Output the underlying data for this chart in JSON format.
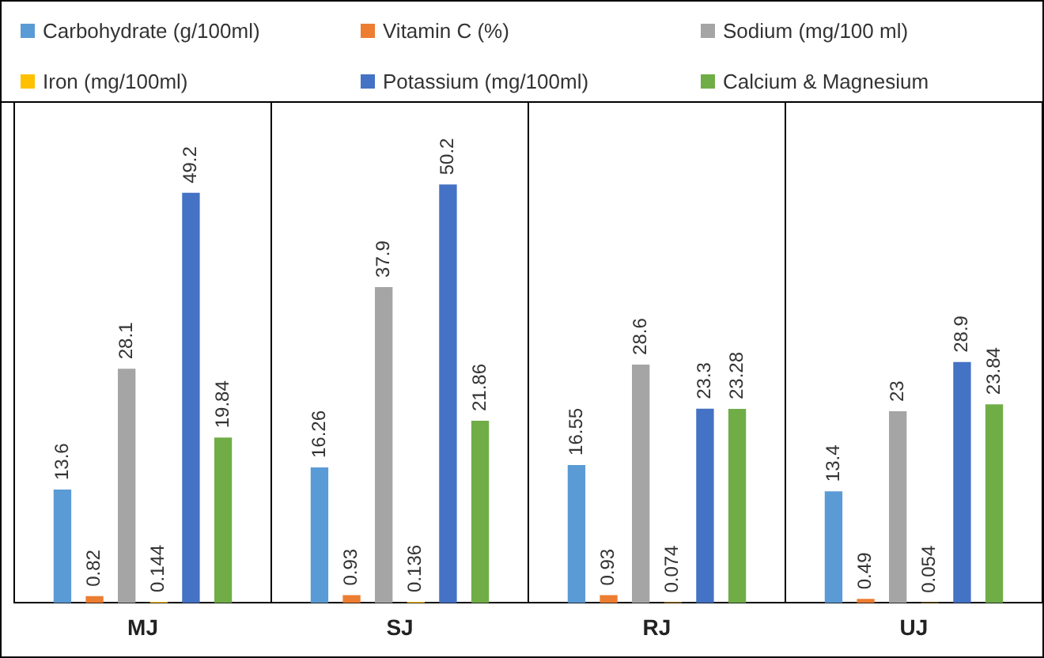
{
  "chart_data": {
    "type": "bar",
    "categories": [
      "MJ",
      "SJ",
      "RJ",
      "UJ"
    ],
    "series": [
      {
        "name": "Carbohydrate (g/100ml)",
        "color": "#5b9bd5",
        "values": [
          13.6,
          16.26,
          16.55,
          13.4
        ]
      },
      {
        "name": "Vitamin C (%)",
        "color": "#ed7d31",
        "values": [
          0.82,
          0.93,
          0.93,
          0.49
        ]
      },
      {
        "name": "Sodium (mg/100 ml)",
        "color": "#a5a5a5",
        "values": [
          28.1,
          37.9,
          28.6,
          23
        ]
      },
      {
        "name": "Iron (mg/100ml)",
        "color": "#ffc000",
        "values": [
          0.144,
          0.136,
          0.074,
          0.054
        ]
      },
      {
        "name": "Potassium (mg/100ml)",
        "color": "#4472c4",
        "values": [
          49.2,
          50.2,
          23.3,
          28.9
        ]
      },
      {
        "name": "Calcium & Magnesium",
        "color": "#70ad47",
        "values": [
          19.84,
          21.86,
          23.28,
          23.84
        ]
      }
    ],
    "ylim": [
      0,
      60
    ],
    "tick_labels": "x",
    "grid": "x",
    "legend": "top",
    "data_labels": true
  }
}
